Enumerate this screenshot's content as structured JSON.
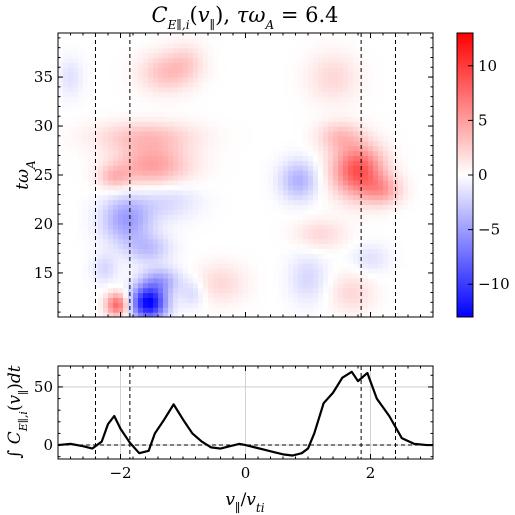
{
  "chart_data": [
    {
      "type": "heatmap",
      "title": "C_{E∥,i}(v∥), τω_A = 6.4",
      "xlabel": "",
      "ylabel": "tω_A",
      "xlim": [
        -3,
        3
      ],
      "ylim": [
        10.5,
        39.5
      ],
      "x_ticks": [
        "−2",
        "0",
        "2"
      ],
      "y_ticks": [
        "15",
        "20",
        "25",
        "30",
        "35"
      ],
      "colorbar": {
        "min": -13,
        "max": 13,
        "ticks": [
          "10",
          "5",
          "0",
          "−5",
          "−10"
        ],
        "colormap": "bwr"
      },
      "vertical_dashed_lines": [
        -2.4,
        -1.85,
        1.85,
        2.4
      ],
      "blobs": [
        {
          "x": -1.55,
          "y": 12.0,
          "w": 0.28,
          "h": 1.8,
          "v": -13
        },
        {
          "x": -1.35,
          "y": 14.3,
          "w": 0.3,
          "h": 1.3,
          "v": -4
        },
        {
          "x": -2.05,
          "y": 11.8,
          "w": 0.18,
          "h": 1.2,
          "v": 8
        },
        {
          "x": -2.25,
          "y": 15.5,
          "w": 0.2,
          "h": 1.5,
          "v": -2
        },
        {
          "x": -1.55,
          "y": 17.5,
          "w": 0.35,
          "h": 1.5,
          "v": -3
        },
        {
          "x": -1.9,
          "y": 20.5,
          "w": 0.4,
          "h": 2.5,
          "v": -5
        },
        {
          "x": -1.25,
          "y": 22.5,
          "w": 0.5,
          "h": 2.0,
          "v": -2
        },
        {
          "x": -1.5,
          "y": 26.0,
          "w": 0.6,
          "h": 2.2,
          "v": 5
        },
        {
          "x": -1.6,
          "y": 29.0,
          "w": 0.8,
          "h": 1.5,
          "v": 3
        },
        {
          "x": -2.1,
          "y": 24.8,
          "w": 0.25,
          "h": 1.2,
          "v": 3
        },
        {
          "x": -1.3,
          "y": 35.5,
          "w": 0.4,
          "h": 2.0,
          "v": 3
        },
        {
          "x": -0.95,
          "y": 36.5,
          "w": 0.3,
          "h": 2.0,
          "v": 2
        },
        {
          "x": -2.8,
          "y": 35.0,
          "w": 0.2,
          "h": 2.0,
          "v": -1.5
        },
        {
          "x": -0.4,
          "y": 14.0,
          "w": 0.4,
          "h": 2.0,
          "v": 2
        },
        {
          "x": -0.85,
          "y": 13.0,
          "w": 0.2,
          "h": 1.5,
          "v": -2
        },
        {
          "x": 0.85,
          "y": 24.5,
          "w": 0.3,
          "h": 2.0,
          "v": -4
        },
        {
          "x": 1.0,
          "y": 14.5,
          "w": 0.3,
          "h": 2.5,
          "v": -2
        },
        {
          "x": 1.2,
          "y": 19.0,
          "w": 0.4,
          "h": 1.5,
          "v": 2
        },
        {
          "x": 1.8,
          "y": 25.5,
          "w": 0.4,
          "h": 2.6,
          "v": 9
        },
        {
          "x": 1.5,
          "y": 29.0,
          "w": 0.35,
          "h": 1.5,
          "v": 3
        },
        {
          "x": 2.2,
          "y": 23.5,
          "w": 0.3,
          "h": 1.5,
          "v": 4
        },
        {
          "x": 1.4,
          "y": 35.0,
          "w": 0.4,
          "h": 2.5,
          "v": 2
        },
        {
          "x": 1.7,
          "y": 13.0,
          "w": 0.35,
          "h": 2.0,
          "v": 2
        },
        {
          "x": 2.0,
          "y": 16.5,
          "w": 0.3,
          "h": 1.5,
          "v": -1.5
        }
      ]
    },
    {
      "type": "line",
      "ylabel": "∫ C_{E∥,i}(v∥) dt",
      "xlabel": "v∥/v_ti",
      "xlim": [
        -3,
        3
      ],
      "ylim": [
        -12,
        68
      ],
      "x_ticks": [
        "−2",
        "0",
        "2"
      ],
      "y_ticks": [
        "50",
        "0"
      ],
      "vertical_dashed_lines": [
        -2.4,
        -1.85,
        1.85,
        2.4
      ],
      "horizontal_dashed_line": 0,
      "grid": true,
      "x": [
        -3.0,
        -2.8,
        -2.6,
        -2.45,
        -2.3,
        -2.2,
        -2.1,
        -2.0,
        -1.85,
        -1.7,
        -1.55,
        -1.45,
        -1.3,
        -1.15,
        -1.0,
        -0.85,
        -0.7,
        -0.55,
        -0.4,
        -0.25,
        -0.1,
        0.0,
        0.15,
        0.3,
        0.45,
        0.6,
        0.75,
        0.9,
        1.0,
        1.1,
        1.25,
        1.4,
        1.55,
        1.7,
        1.8,
        1.95,
        2.1,
        2.3,
        2.5,
        2.7,
        2.9,
        3.0
      ],
      "y": [
        0,
        1,
        -1,
        -3,
        3,
        18,
        25,
        14,
        2,
        -7,
        -5,
        10,
        22,
        35,
        22,
        10,
        3,
        -2,
        -3,
        -1,
        1,
        0,
        -2,
        -4,
        -6,
        -8,
        -9,
        -7,
        -3,
        10,
        36,
        45,
        58,
        63,
        55,
        62,
        40,
        25,
        6,
        1,
        0,
        0
      ]
    }
  ]
}
